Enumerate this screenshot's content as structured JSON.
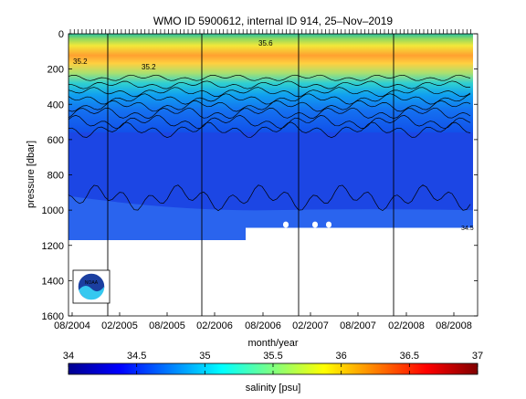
{
  "chart_data": {
    "type": "heatmap",
    "title": "WMO ID 5900612, internal ID 914, 25–Nov–2019",
    "xlabel": "month/year",
    "ylabel": "pressure [dbar]",
    "x_ticks": [
      "08/2004",
      "02/2005",
      "08/2005",
      "02/2006",
      "08/2006",
      "02/2007",
      "08/2007",
      "02/2008",
      "08/2008"
    ],
    "y_ticks": [
      0,
      200,
      400,
      600,
      800,
      1000,
      1200,
      1400,
      1600
    ],
    "ylim": [
      0,
      1600
    ],
    "y_reversed": true,
    "grid": false,
    "colorbar": {
      "label": "salinity [psu]",
      "ticks": [
        34,
        34.5,
        35,
        35.5,
        36,
        36.5,
        37
      ],
      "range": [
        34,
        37
      ]
    },
    "profile_lines_at": [
      "02/2005",
      "02/2006",
      "02/2007",
      "02/2008"
    ],
    "contour_labels": [
      "35.2",
      "35.2",
      "35.6",
      "34.5"
    ],
    "logo": "noaa-logo-icon",
    "colors": {
      "deep": "#0a2ee6",
      "mid": "#2a6cf2",
      "frontier": "#1e4ae0"
    }
  }
}
